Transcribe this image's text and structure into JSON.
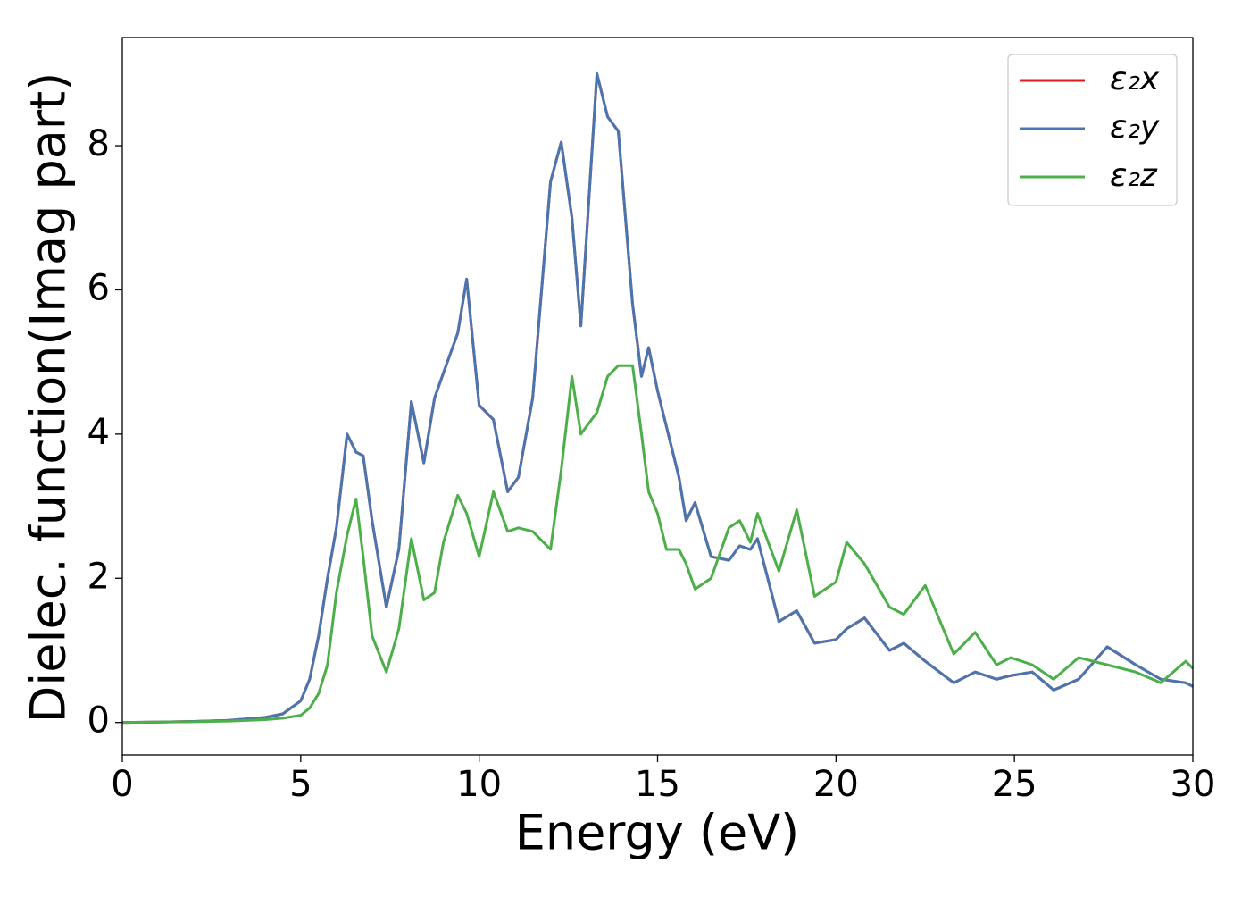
{
  "chart_data": {
    "type": "line",
    "xlabel": "Energy (eV)",
    "ylabel": "Dielec. function(Imag part)",
    "x": [
      0,
      1,
      2,
      3,
      4,
      4.5,
      5,
      5.25,
      5.5,
      5.75,
      6,
      6.3,
      6.55,
      6.75,
      7,
      7.4,
      7.75,
      8.1,
      8.45,
      8.75,
      9,
      9.4,
      9.65,
      10,
      10.4,
      10.8,
      11.1,
      11.5,
      12,
      12.3,
      12.6,
      12.85,
      13.3,
      13.6,
      13.9,
      14.3,
      14.55,
      14.75,
      15,
      15.25,
      15.6,
      15.8,
      16.05,
      16.5,
      17,
      17.3,
      17.6,
      17.8,
      18.4,
      18.9,
      19.4,
      20,
      20.3,
      20.8,
      21.5,
      21.9,
      22.5,
      23.3,
      23.9,
      24.5,
      24.9,
      25.5,
      26.1,
      26.8,
      27.6,
      28.4,
      29.1,
      29.8,
      30
    ],
    "series": [
      {
        "name": "ε₂x",
        "color": "#e41a1c",
        "values": [
          0,
          0.005,
          0.015,
          0.03,
          0.07,
          0.12,
          0.3,
          0.6,
          1.2,
          2.0,
          2.7,
          4.0,
          3.75,
          3.7,
          2.8,
          1.6,
          2.4,
          4.45,
          3.6,
          4.5,
          4.85,
          5.4,
          6.15,
          4.4,
          4.2,
          3.2,
          3.4,
          4.5,
          7.5,
          8.05,
          7.0,
          5.5,
          9.0,
          8.4,
          8.2,
          5.8,
          4.8,
          5.2,
          4.6,
          4.1,
          3.4,
          2.8,
          3.05,
          2.3,
          2.25,
          2.45,
          2.4,
          2.55,
          1.4,
          1.55,
          1.1,
          1.15,
          1.3,
          1.45,
          1.0,
          1.1,
          0.85,
          0.55,
          0.7,
          0.6,
          0.65,
          0.7,
          0.45,
          0.6,
          1.05,
          0.8,
          0.6,
          0.55,
          0.5
        ]
      },
      {
        "name": "ε₂y",
        "color": "#4a76b0",
        "values": [
          0,
          0.005,
          0.015,
          0.03,
          0.07,
          0.12,
          0.3,
          0.6,
          1.2,
          2.0,
          2.7,
          4.0,
          3.75,
          3.7,
          2.8,
          1.6,
          2.4,
          4.45,
          3.6,
          4.5,
          4.85,
          5.4,
          6.15,
          4.4,
          4.2,
          3.2,
          3.4,
          4.5,
          7.5,
          8.05,
          7.0,
          5.5,
          9.0,
          8.4,
          8.2,
          5.8,
          4.8,
          5.2,
          4.6,
          4.1,
          3.4,
          2.8,
          3.05,
          2.3,
          2.25,
          2.45,
          2.4,
          2.55,
          1.4,
          1.55,
          1.1,
          1.15,
          1.3,
          1.45,
          1.0,
          1.1,
          0.85,
          0.55,
          0.7,
          0.6,
          0.65,
          0.7,
          0.45,
          0.6,
          1.05,
          0.8,
          0.6,
          0.55,
          0.5
        ]
      },
      {
        "name": "ε₂z",
        "color": "#4daf4a",
        "values": [
          0,
          0.005,
          0.01,
          0.02,
          0.04,
          0.06,
          0.1,
          0.2,
          0.4,
          0.8,
          1.8,
          2.6,
          3.1,
          2.3,
          1.2,
          0.7,
          1.3,
          2.55,
          1.7,
          1.8,
          2.5,
          3.15,
          2.9,
          2.3,
          3.2,
          2.65,
          2.7,
          2.65,
          2.4,
          3.5,
          4.8,
          4.0,
          4.3,
          4.8,
          4.95,
          4.95,
          4.0,
          3.2,
          2.9,
          2.4,
          2.4,
          2.2,
          1.85,
          2.0,
          2.7,
          2.8,
          2.5,
          2.9,
          2.1,
          2.95,
          1.75,
          1.95,
          2.5,
          2.2,
          1.6,
          1.5,
          1.9,
          0.95,
          1.25,
          0.8,
          0.9,
          0.8,
          0.6,
          0.9,
          0.8,
          0.7,
          0.55,
          0.85,
          0.75
        ]
      }
    ],
    "xlim": [
      0,
      30
    ],
    "xticks": [
      0,
      5,
      10,
      15,
      20,
      25,
      30
    ],
    "ylim": [
      -0.45,
      9.5
    ],
    "yticks": [
      0,
      2,
      4,
      6,
      8
    ],
    "legend": "upper right",
    "grid": false
  }
}
